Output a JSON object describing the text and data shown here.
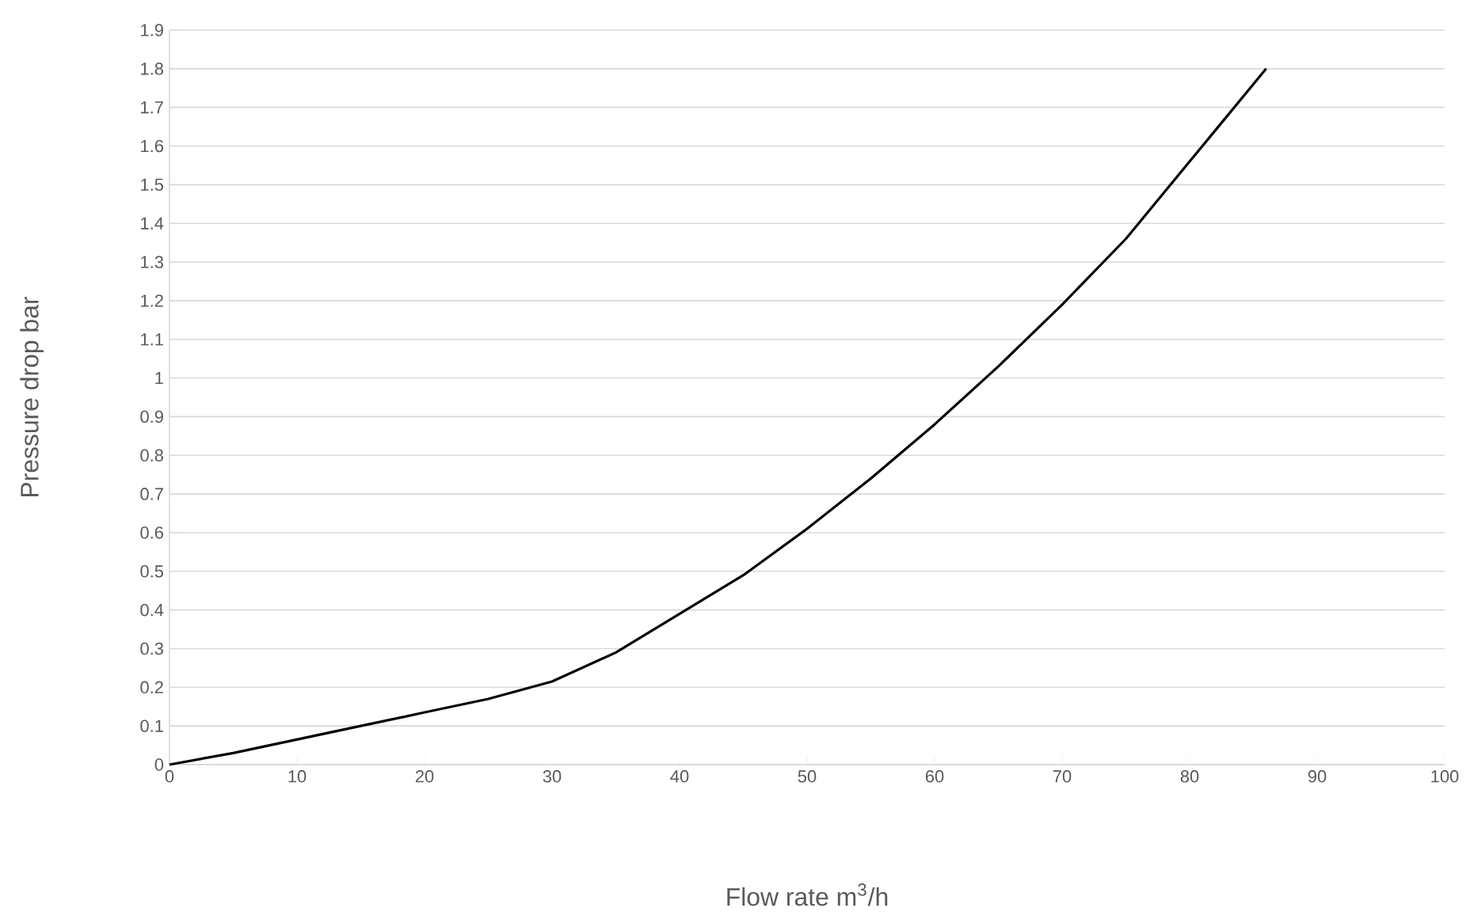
{
  "chart_data": {
    "type": "line",
    "xlabel": "Flow rate m$^{3}$/h",
    "ylabel": "Pressure drop bar",
    "x": [
      0,
      5,
      10,
      15,
      20,
      25,
      30,
      35,
      40,
      45,
      50,
      55,
      60,
      65,
      70,
      75,
      80,
      86
    ],
    "series": [
      {
        "color": "#000000",
        "values": [
          0,
          0.03,
          0.065,
          0.1,
          0.135,
          0.17,
          0.215,
          0.29,
          0.39,
          0.49,
          0.61,
          0.74,
          0.88,
          1.03,
          1.19,
          1.36,
          1.56,
          1.8
        ]
      }
    ],
    "xlim": [
      0,
      100
    ],
    "ylim": [
      0,
      1.9
    ],
    "xticks": [
      0,
      10,
      20,
      30,
      40,
      50,
      60,
      70,
      80,
      90,
      100
    ],
    "yticks": [
      0,
      0.1,
      0.2,
      0.3,
      0.4,
      0.5,
      0.6,
      0.7,
      0.8,
      0.9,
      1,
      1.1,
      1.2,
      1.3,
      1.4,
      1.5,
      1.6,
      1.7,
      1.8,
      1.9
    ],
    "grid": "y"
  }
}
